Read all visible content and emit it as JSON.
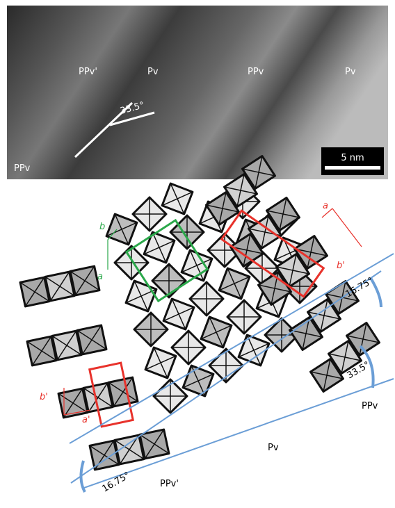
{
  "image": {
    "labels": [
      "PPv'",
      "Pv",
      "PPv",
      "Pv",
      "PPv"
    ],
    "angle": "33.5°",
    "scale_bar": "5 nm"
  },
  "diagram": {
    "green_axes": {
      "b": "b",
      "a": "a"
    },
    "red_axes_right": {
      "a": "a",
      "b": "b'"
    },
    "red_axes_left": {
      "b": "b'",
      "a": "a'"
    },
    "angles": [
      "16.75°",
      "33.5°",
      "16.75°"
    ],
    "phase_labels": [
      "PPv",
      "Pv",
      "PPv'"
    ]
  }
}
